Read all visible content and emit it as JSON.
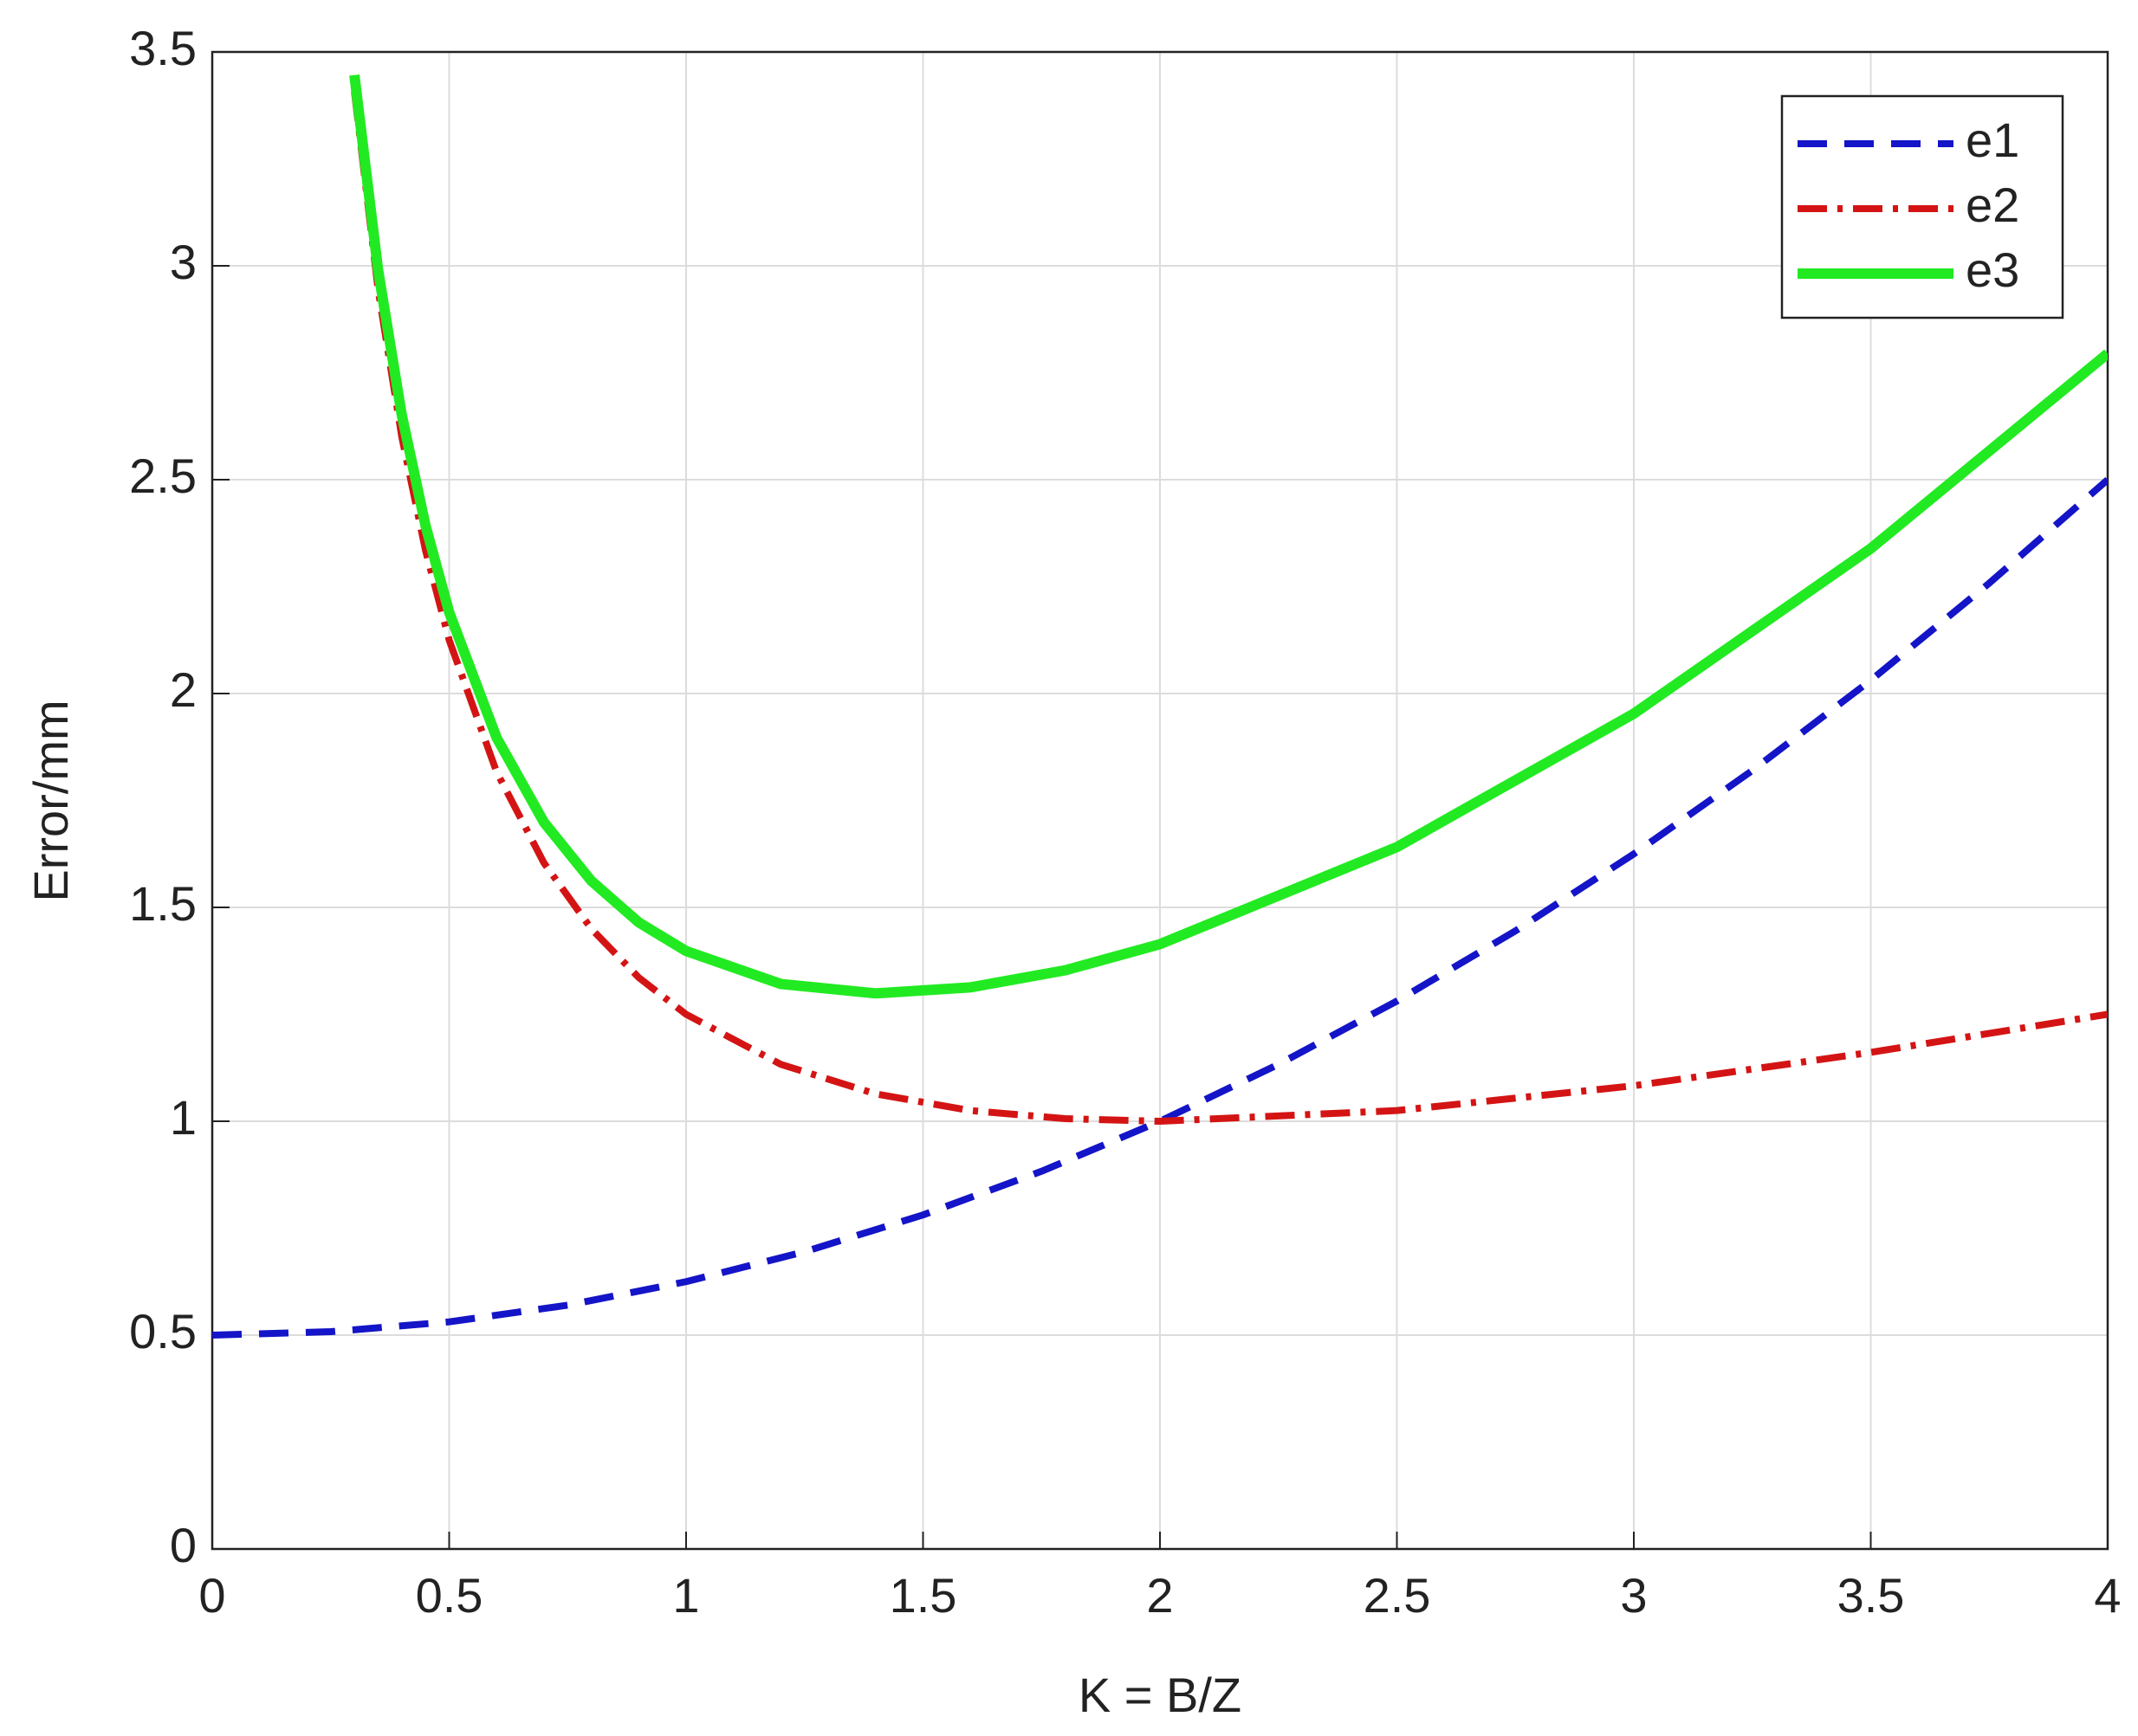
{
  "chart_data": {
    "type": "line",
    "xlabel": "K = B/Z",
    "ylabel": "Error/mm",
    "xlim": [
      0,
      4
    ],
    "ylim": [
      0,
      3.5
    ],
    "xticks": [
      0,
      0.5,
      1,
      1.5,
      2,
      2.5,
      3,
      3.5,
      4
    ],
    "yticks": [
      0,
      0.5,
      1,
      1.5,
      2,
      2.5,
      3,
      3.5
    ],
    "grid": true,
    "legend": "northeast",
    "series": [
      {
        "name": "e1",
        "color": "#1414c8",
        "dash": "dashed",
        "x": [
          0,
          0.25,
          0.5,
          0.75,
          1,
          1.25,
          1.5,
          1.75,
          2,
          2.25,
          2.5,
          2.75,
          3,
          3.25,
          3.5,
          3.75,
          4
        ],
        "values": [
          0.5,
          0.508,
          0.531,
          0.57,
          0.625,
          0.695,
          0.781,
          0.883,
          1,
          1.133,
          1.281,
          1.445,
          1.625,
          1.82,
          2.031,
          2.258,
          2.5
        ]
      },
      {
        "name": "e2",
        "color": "#d41414",
        "dash": "dash-dot",
        "x": [
          0.3,
          0.35,
          0.4,
          0.45,
          0.5,
          0.6,
          0.7,
          0.8,
          0.9,
          1,
          1.2,
          1.4,
          1.6,
          1.8,
          2,
          2.5,
          3,
          3.5,
          4
        ],
        "values": [
          3.408,
          2.945,
          2.6,
          2.335,
          2.125,
          1.817,
          1.604,
          1.45,
          1.336,
          1.25,
          1.133,
          1.064,
          1.025,
          1.006,
          1,
          1.025,
          1.083,
          1.161,
          1.25
        ]
      },
      {
        "name": "e3",
        "color": "#22ea22",
        "dash": "solid",
        "x": [
          0.3,
          0.35,
          0.4,
          0.45,
          0.5,
          0.6,
          0.7,
          0.8,
          0.9,
          1,
          1.2,
          1.4,
          1.6,
          1.8,
          2,
          2.5,
          3,
          3.5,
          4
        ],
        "values": [
          3.446,
          2.99,
          2.651,
          2.393,
          2.19,
          1.897,
          1.699,
          1.562,
          1.465,
          1.398,
          1.321,
          1.299,
          1.313,
          1.353,
          1.414,
          1.641,
          1.953,
          2.339,
          2.795
        ]
      }
    ]
  }
}
